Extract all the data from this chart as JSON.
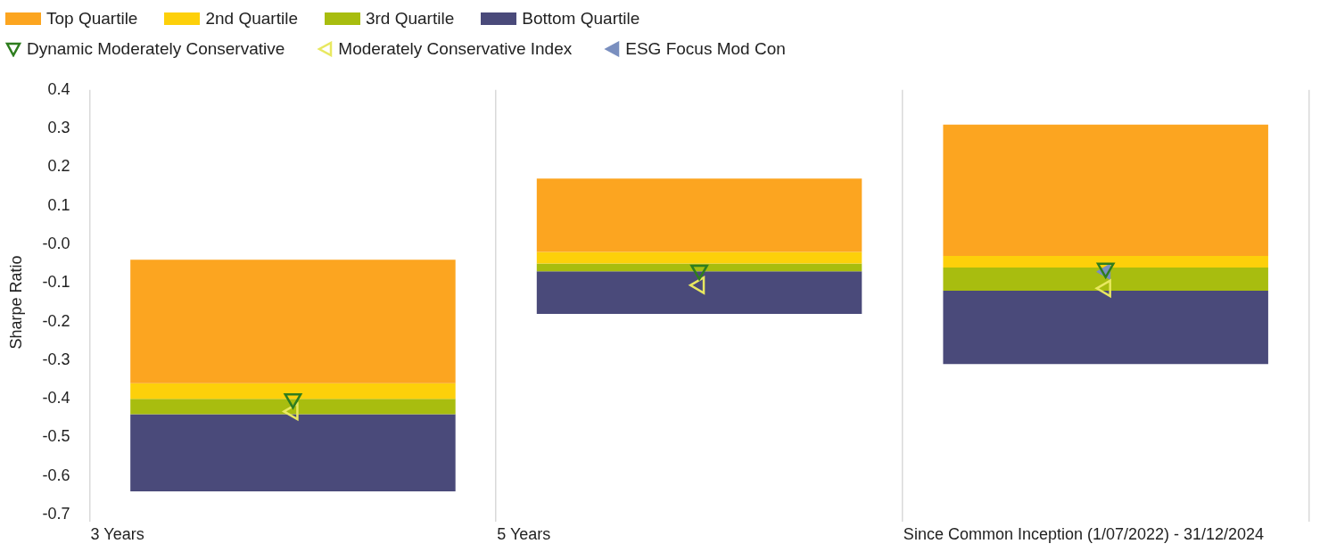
{
  "chart_data": {
    "type": "bar",
    "ylabel": "Sharpe Ratio",
    "categories": [
      "3 Years",
      "5 Years",
      "Since Common Inception (1/07/2022) - 31/12/2024"
    ],
    "series": [
      {
        "name": "Top Quartile",
        "color": "#fca520",
        "base": [
          -0.36,
          -0.02,
          -0.03
        ],
        "values": [
          0.32,
          0.19,
          0.34
        ]
      },
      {
        "name": "2nd Quartile",
        "color": "#fdd00a",
        "base": [
          -0.4,
          -0.05,
          -0.06
        ],
        "values": [
          0.04,
          0.03,
          0.03
        ]
      },
      {
        "name": "3rd Quartile",
        "color": "#a8bd0f",
        "base": [
          -0.44,
          -0.07,
          -0.12
        ],
        "values": [
          0.04,
          0.02,
          0.06
        ]
      },
      {
        "name": "Bottom Quartile",
        "color": "#4a4a7a",
        "base": [
          -0.64,
          -0.18,
          -0.31
        ],
        "values": [
          0.2,
          0.11,
          0.19
        ]
      },
      {
        "name": "Dynamic Moderately Conservative",
        "type": "scatter",
        "marker": "triangle",
        "color": "#2e7d1e",
        "values": [
          -0.4,
          -0.067,
          -0.062
        ]
      },
      {
        "name": "Moderately Conservative Index",
        "type": "scatter",
        "marker": "triangle",
        "color": "#e8e860",
        "values": [
          -0.433,
          -0.106,
          -0.114
        ]
      },
      {
        "name": "ESG Focus Mod Con",
        "type": "scatter",
        "marker": "triangle",
        "color": "#7a8fbf",
        "values": [
          null,
          null,
          -0.071
        ]
      }
    ],
    "ylim": [
      -0.7,
      0.4
    ],
    "yticks": [
      0.4,
      0.3,
      0.2,
      0.1,
      {
        "value": 0,
        "label": "-0.0"
      },
      -0.1,
      -0.2,
      -0.3,
      -0.4,
      -0.5,
      -0.6,
      -0.7
    ],
    "grid": "x",
    "legend": "top left"
  }
}
